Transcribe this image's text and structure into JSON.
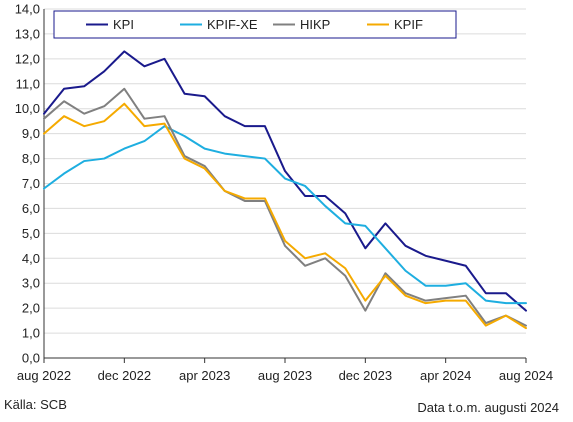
{
  "chart_data": {
    "type": "line",
    "title": "",
    "xlabel": "",
    "ylabel": "",
    "ylim": [
      0,
      14
    ],
    "yticks": [
      "0,0",
      "1,0",
      "2,0",
      "3,0",
      "4,0",
      "5,0",
      "6,0",
      "7,0",
      "8,0",
      "9,0",
      "10,0",
      "11,0",
      "12,0",
      "13,0",
      "14,0"
    ],
    "x": [
      "2022-08",
      "2022-09",
      "2022-10",
      "2022-11",
      "2022-12",
      "2023-01",
      "2023-02",
      "2023-03",
      "2023-04",
      "2023-05",
      "2023-06",
      "2023-07",
      "2023-08",
      "2023-09",
      "2023-10",
      "2023-11",
      "2023-12",
      "2024-01",
      "2024-02",
      "2024-03",
      "2024-04",
      "2024-05",
      "2024-06",
      "2024-07",
      "2024-08"
    ],
    "xticks": [
      {
        "index": 0,
        "label": "aug 2022"
      },
      {
        "index": 4,
        "label": "dec 2022"
      },
      {
        "index": 8,
        "label": "apr 2023"
      },
      {
        "index": 12,
        "label": "aug 2023"
      },
      {
        "index": 16,
        "label": "dec 2023"
      },
      {
        "index": 20,
        "label": "apr 2024"
      },
      {
        "index": 24,
        "label": "aug 2024"
      }
    ],
    "grid": true,
    "legend_position": "top",
    "series": [
      {
        "name": "KPI",
        "color": "#1a1a8c",
        "values": [
          9.8,
          10.8,
          10.9,
          11.5,
          12.3,
          11.7,
          12.0,
          10.6,
          10.5,
          9.7,
          9.3,
          9.3,
          7.5,
          6.5,
          6.5,
          5.8,
          4.4,
          5.4,
          4.5,
          4.1,
          3.9,
          3.7,
          2.6,
          2.6,
          1.9
        ]
      },
      {
        "name": "KPIF-XE",
        "color": "#1eaee0",
        "values": [
          6.8,
          7.4,
          7.9,
          8.0,
          8.4,
          8.7,
          9.3,
          8.9,
          8.4,
          8.2,
          8.1,
          8.0,
          7.2,
          6.9,
          6.1,
          5.4,
          5.3,
          4.4,
          3.5,
          2.9,
          2.9,
          3.0,
          2.3,
          2.2,
          2.2
        ]
      },
      {
        "name": "HIKP",
        "color": "#808080",
        "values": [
          9.6,
          10.3,
          9.8,
          10.1,
          10.8,
          9.6,
          9.7,
          8.1,
          7.7,
          6.7,
          6.3,
          6.3,
          4.5,
          3.7,
          4.0,
          3.3,
          1.9,
          3.4,
          2.6,
          2.3,
          2.4,
          2.5,
          1.4,
          1.7,
          1.3
        ]
      },
      {
        "name": "KPIF",
        "color": "#f5aa00",
        "values": [
          9.0,
          9.7,
          9.3,
          9.5,
          10.2,
          9.3,
          9.4,
          8.0,
          7.6,
          6.7,
          6.4,
          6.4,
          4.7,
          4.0,
          4.2,
          3.6,
          2.3,
          3.3,
          2.5,
          2.2,
          2.3,
          2.3,
          1.3,
          1.7,
          1.2
        ]
      }
    ]
  },
  "footer": {
    "source": "Källa: SCB",
    "data_note": "Data t.o.m. augusti 2024"
  }
}
